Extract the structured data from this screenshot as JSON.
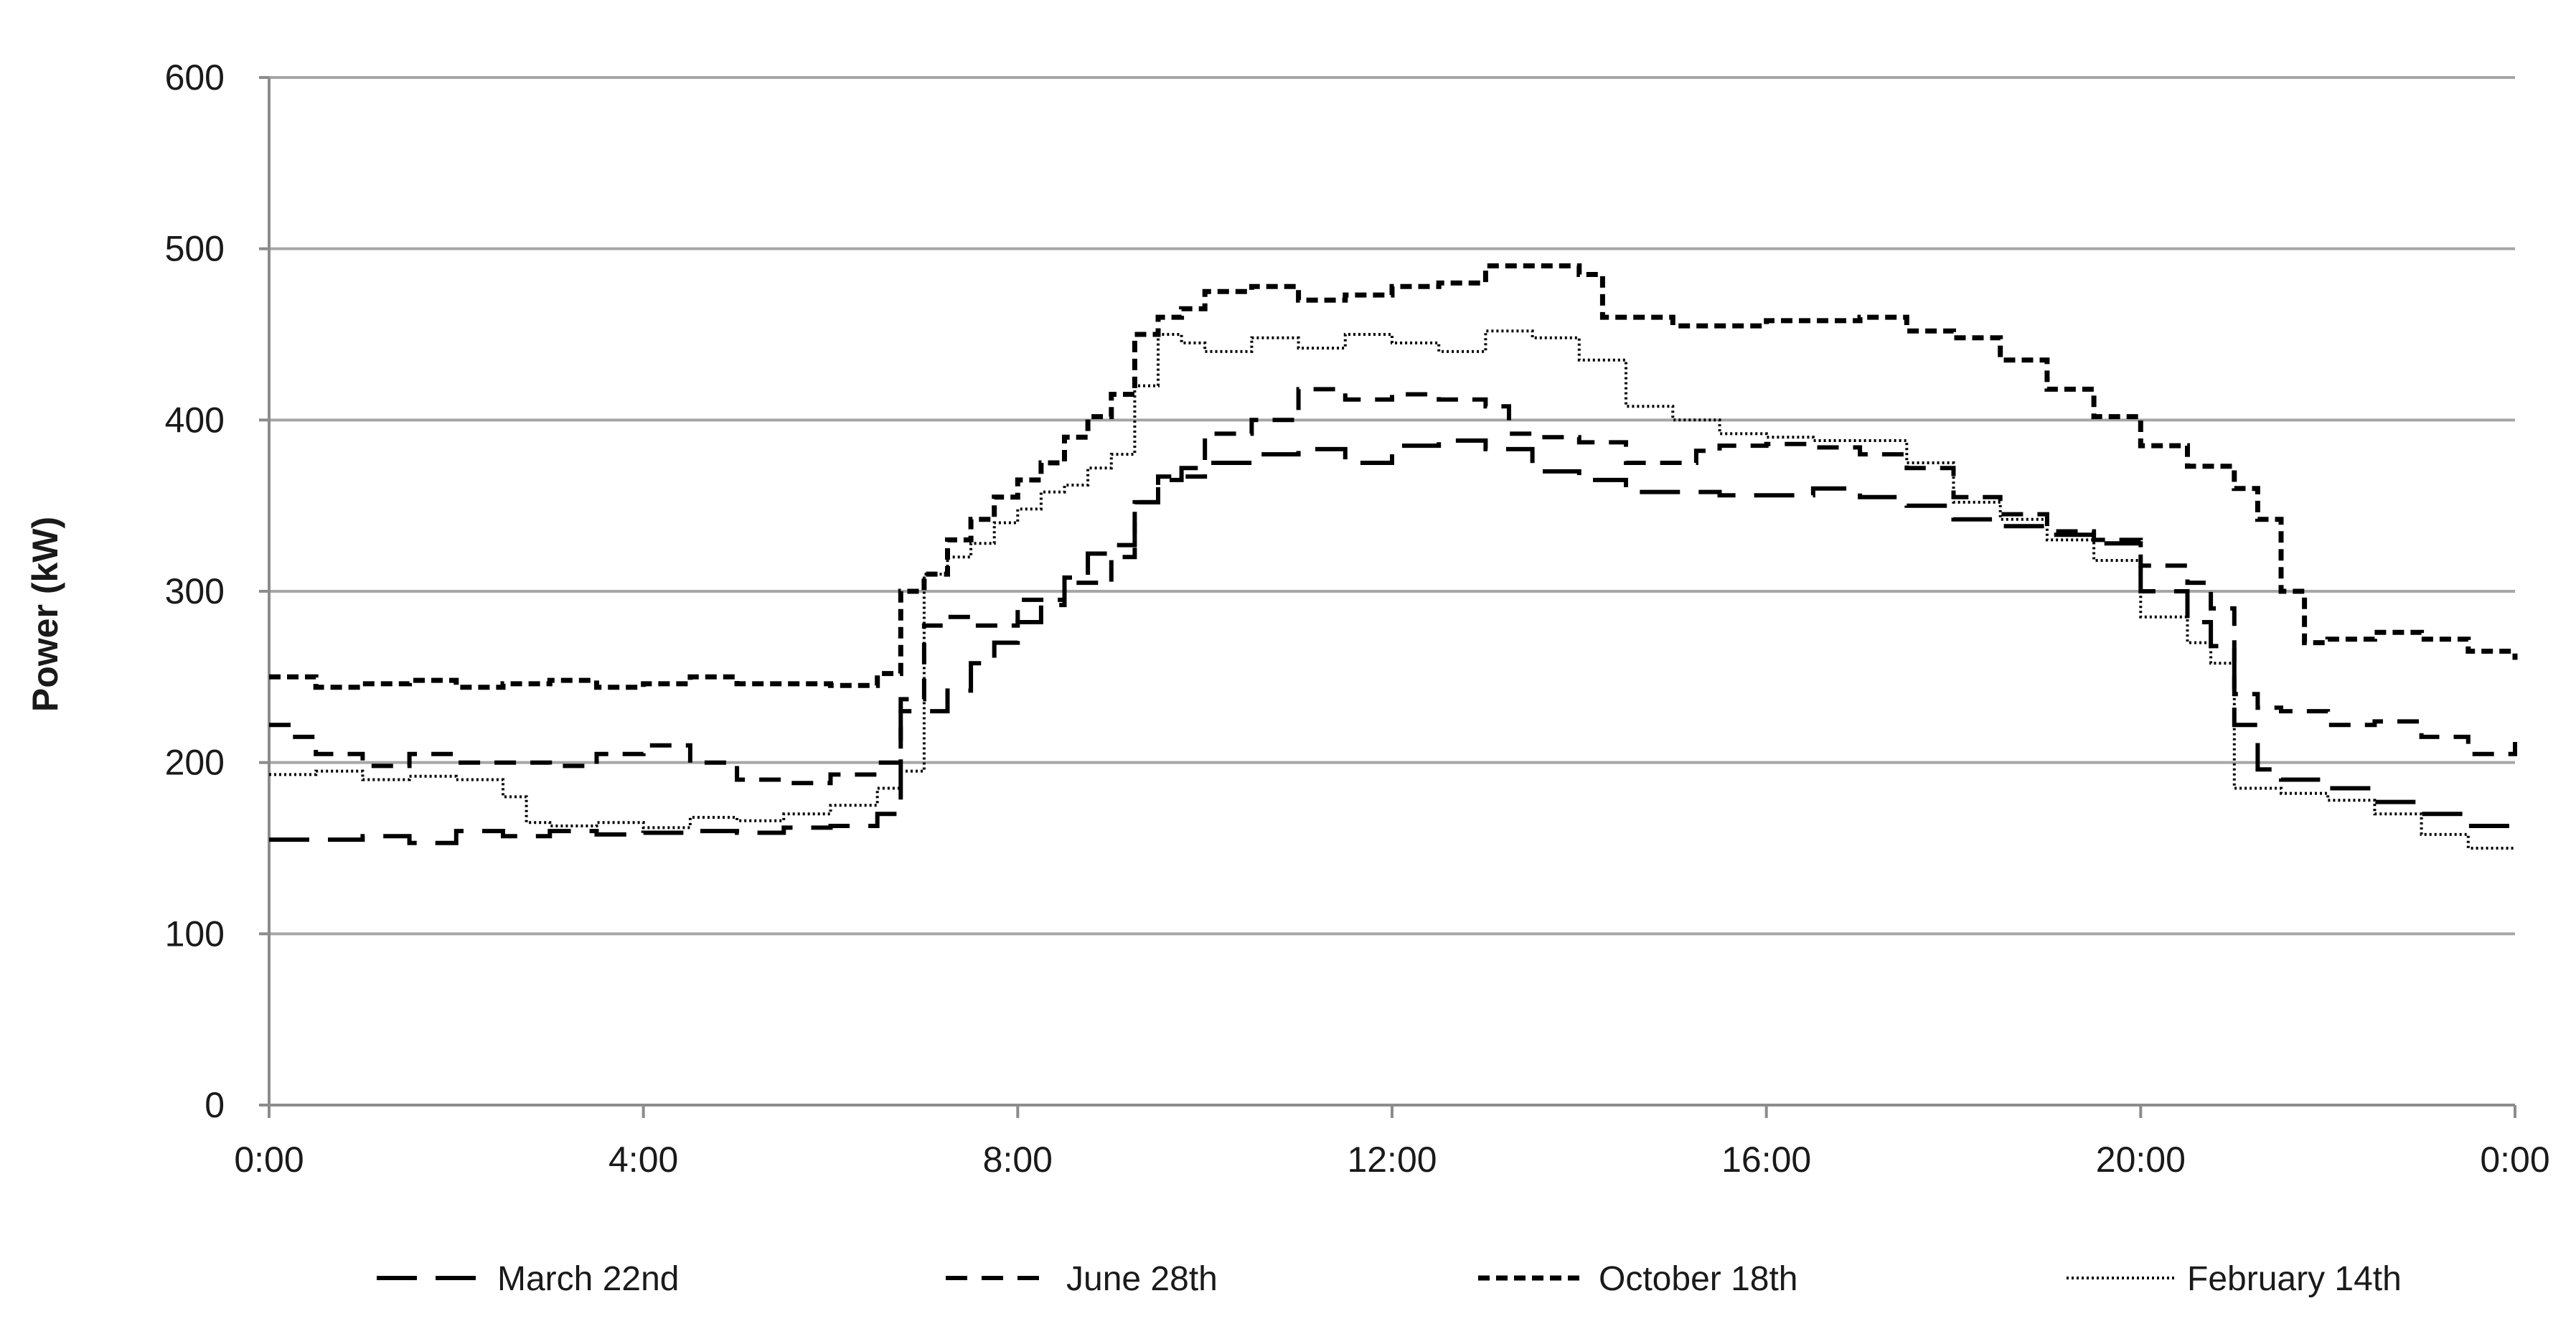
{
  "chart_data": {
    "type": "line",
    "title": "",
    "xlabel": "",
    "ylabel": "Power (kW)",
    "ylim": [
      0,
      600
    ],
    "yticks": [
      "0",
      "100",
      "200",
      "300",
      "400",
      "500",
      "600"
    ],
    "xlim_hours": [
      0,
      24
    ],
    "xticks": [
      "0:00",
      "4:00",
      "8:00",
      "12:00",
      "16:00",
      "20:00",
      "0:00"
    ],
    "grid": "horizontal",
    "legend_position": "bottom",
    "series": [
      {
        "name": "March 22nd",
        "dash": "long-dash",
        "points": [
          [
            "0:00",
            155
          ],
          [
            "0:30",
            155
          ],
          [
            "1:00",
            157
          ],
          [
            "1:30",
            153
          ],
          [
            "2:00",
            160
          ],
          [
            "2:30",
            157
          ],
          [
            "3:00",
            160
          ],
          [
            "3:30",
            158
          ],
          [
            "4:00",
            159
          ],
          [
            "4:30",
            160
          ],
          [
            "5:00",
            159
          ],
          [
            "5:30",
            162
          ],
          [
            "6:00",
            163
          ],
          [
            "6:30",
            170
          ],
          [
            "6:45",
            230
          ],
          [
            "7:00",
            230
          ],
          [
            "7:15",
            242
          ],
          [
            "7:30",
            258
          ],
          [
            "7:45",
            270
          ],
          [
            "8:00",
            282
          ],
          [
            "8:15",
            292
          ],
          [
            "8:30",
            308
          ],
          [
            "8:45",
            322
          ],
          [
            "9:00",
            327
          ],
          [
            "9:15",
            352
          ],
          [
            "9:30",
            365
          ],
          [
            "9:45",
            372
          ],
          [
            "10:00",
            375
          ],
          [
            "10:30",
            380
          ],
          [
            "11:00",
            383
          ],
          [
            "11:30",
            375
          ],
          [
            "12:00",
            385
          ],
          [
            "12:30",
            388
          ],
          [
            "13:00",
            383
          ],
          [
            "13:30",
            370
          ],
          [
            "14:00",
            365
          ],
          [
            "14:30",
            358
          ],
          [
            "15:00",
            358
          ],
          [
            "15:30",
            356
          ],
          [
            "16:00",
            356
          ],
          [
            "16:30",
            360
          ],
          [
            "17:00",
            355
          ],
          [
            "17:30",
            350
          ],
          [
            "18:00",
            342
          ],
          [
            "18:30",
            338
          ],
          [
            "19:00",
            333
          ],
          [
            "19:30",
            328
          ],
          [
            "20:00",
            300
          ],
          [
            "20:30",
            282
          ],
          [
            "20:45",
            268
          ],
          [
            "21:00",
            222
          ],
          [
            "21:15",
            196
          ],
          [
            "21:30",
            190
          ],
          [
            "22:00",
            185
          ],
          [
            "22:30",
            177
          ],
          [
            "23:00",
            170
          ],
          [
            "23:30",
            163
          ],
          [
            "24:00",
            165
          ]
        ]
      },
      {
        "name": "June 28th",
        "dash": "dash",
        "points": [
          [
            "0:00",
            222
          ],
          [
            "0:15",
            215
          ],
          [
            "0:30",
            205
          ],
          [
            "1:00",
            198
          ],
          [
            "1:30",
            205
          ],
          [
            "2:00",
            200
          ],
          [
            "2:30",
            200
          ],
          [
            "3:00",
            198
          ],
          [
            "3:30",
            205
          ],
          [
            "4:00",
            210
          ],
          [
            "4:30",
            200
          ],
          [
            "5:00",
            190
          ],
          [
            "5:30",
            188
          ],
          [
            "6:00",
            193
          ],
          [
            "6:30",
            200
          ],
          [
            "6:45",
            237
          ],
          [
            "7:00",
            280
          ],
          [
            "7:15",
            285
          ],
          [
            "7:30",
            280
          ],
          [
            "8:00",
            295
          ],
          [
            "8:30",
            305
          ],
          [
            "9:00",
            320
          ],
          [
            "9:15",
            352
          ],
          [
            "9:30",
            367
          ],
          [
            "10:00",
            392
          ],
          [
            "10:30",
            400
          ],
          [
            "11:00",
            418
          ],
          [
            "11:30",
            412
          ],
          [
            "12:00",
            415
          ],
          [
            "12:30",
            412
          ],
          [
            "13:00",
            408
          ],
          [
            "13:15",
            392
          ],
          [
            "13:30",
            390
          ],
          [
            "14:00",
            387
          ],
          [
            "14:30",
            375
          ],
          [
            "15:00",
            375
          ],
          [
            "15:15",
            382
          ],
          [
            "15:30",
            385
          ],
          [
            "16:00",
            386
          ],
          [
            "16:30",
            384
          ],
          [
            "17:00",
            380
          ],
          [
            "17:30",
            372
          ],
          [
            "18:00",
            355
          ],
          [
            "18:30",
            345
          ],
          [
            "19:00",
            335
          ],
          [
            "19:30",
            330
          ],
          [
            "20:00",
            315
          ],
          [
            "20:30",
            305
          ],
          [
            "20:45",
            290
          ],
          [
            "21:00",
            240
          ],
          [
            "21:15",
            232
          ],
          [
            "21:30",
            230
          ],
          [
            "22:00",
            222
          ],
          [
            "22:30",
            224
          ],
          [
            "23:00",
            215
          ],
          [
            "23:30",
            205
          ],
          [
            "24:00",
            212
          ]
        ]
      },
      {
        "name": "October 18th",
        "dash": "short-dash",
        "points": [
          [
            "0:00",
            250
          ],
          [
            "0:30",
            244
          ],
          [
            "1:00",
            246
          ],
          [
            "1:30",
            248
          ],
          [
            "2:00",
            244
          ],
          [
            "2:30",
            246
          ],
          [
            "3:00",
            248
          ],
          [
            "3:30",
            244
          ],
          [
            "4:00",
            246
          ],
          [
            "4:30",
            250
          ],
          [
            "5:00",
            246
          ],
          [
            "5:30",
            246
          ],
          [
            "6:00",
            245
          ],
          [
            "6:30",
            252
          ],
          [
            "6:45",
            300
          ],
          [
            "7:00",
            310
          ],
          [
            "7:15",
            330
          ],
          [
            "7:30",
            342
          ],
          [
            "7:45",
            355
          ],
          [
            "8:00",
            365
          ],
          [
            "8:15",
            375
          ],
          [
            "8:30",
            390
          ],
          [
            "8:45",
            402
          ],
          [
            "9:00",
            415
          ],
          [
            "9:15",
            450
          ],
          [
            "9:30",
            460
          ],
          [
            "9:45",
            465
          ],
          [
            "10:00",
            475
          ],
          [
            "10:30",
            478
          ],
          [
            "11:00",
            470
          ],
          [
            "11:30",
            473
          ],
          [
            "12:00",
            478
          ],
          [
            "12:30",
            480
          ],
          [
            "13:00",
            490
          ],
          [
            "13:30",
            490
          ],
          [
            "14:00",
            485
          ],
          [
            "14:15",
            460
          ],
          [
            "14:30",
            460
          ],
          [
            "15:00",
            455
          ],
          [
            "15:30",
            455
          ],
          [
            "16:00",
            458
          ],
          [
            "16:30",
            458
          ],
          [
            "17:00",
            460
          ],
          [
            "17:30",
            452
          ],
          [
            "18:00",
            448
          ],
          [
            "18:30",
            435
          ],
          [
            "19:00",
            418
          ],
          [
            "19:30",
            402
          ],
          [
            "20:00",
            385
          ],
          [
            "20:30",
            373
          ],
          [
            "21:00",
            360
          ],
          [
            "21:15",
            342
          ],
          [
            "21:30",
            300
          ],
          [
            "21:45",
            270
          ],
          [
            "22:00",
            272
          ],
          [
            "22:30",
            276
          ],
          [
            "23:00",
            272
          ],
          [
            "23:30",
            265
          ],
          [
            "24:00",
            260
          ]
        ]
      },
      {
        "name": "February 14th",
        "dash": "dotted",
        "points": [
          [
            "0:00",
            193
          ],
          [
            "0:30",
            195
          ],
          [
            "1:00",
            190
          ],
          [
            "1:30",
            192
          ],
          [
            "2:00",
            190
          ],
          [
            "2:30",
            180
          ],
          [
            "2:45",
            165
          ],
          [
            "3:00",
            163
          ],
          [
            "3:30",
            165
          ],
          [
            "4:00",
            162
          ],
          [
            "4:30",
            168
          ],
          [
            "5:00",
            166
          ],
          [
            "5:30",
            170
          ],
          [
            "6:00",
            175
          ],
          [
            "6:30",
            185
          ],
          [
            "6:45",
            195
          ],
          [
            "7:00",
            310
          ],
          [
            "7:15",
            320
          ],
          [
            "7:30",
            328
          ],
          [
            "7:45",
            340
          ],
          [
            "8:00",
            348
          ],
          [
            "8:15",
            358
          ],
          [
            "8:30",
            362
          ],
          [
            "8:45",
            372
          ],
          [
            "9:00",
            380
          ],
          [
            "9:15",
            420
          ],
          [
            "9:30",
            450
          ],
          [
            "9:45",
            445
          ],
          [
            "10:00",
            440
          ],
          [
            "10:30",
            448
          ],
          [
            "11:00",
            442
          ],
          [
            "11:30",
            450
          ],
          [
            "12:00",
            445
          ],
          [
            "12:30",
            440
          ],
          [
            "13:00",
            452
          ],
          [
            "13:30",
            448
          ],
          [
            "14:00",
            435
          ],
          [
            "14:30",
            408
          ],
          [
            "15:00",
            400
          ],
          [
            "15:30",
            392
          ],
          [
            "16:00",
            390
          ],
          [
            "16:30",
            388
          ],
          [
            "17:00",
            388
          ],
          [
            "17:30",
            375
          ],
          [
            "18:00",
            352
          ],
          [
            "18:30",
            342
          ],
          [
            "19:00",
            330
          ],
          [
            "19:30",
            318
          ],
          [
            "20:00",
            285
          ],
          [
            "20:30",
            270
          ],
          [
            "20:45",
            258
          ],
          [
            "21:00",
            185
          ],
          [
            "21:15",
            185
          ],
          [
            "21:30",
            182
          ],
          [
            "22:00",
            178
          ],
          [
            "22:30",
            170
          ],
          [
            "23:00",
            158
          ],
          [
            "23:30",
            150
          ],
          [
            "24:00",
            150
          ]
        ]
      }
    ]
  }
}
